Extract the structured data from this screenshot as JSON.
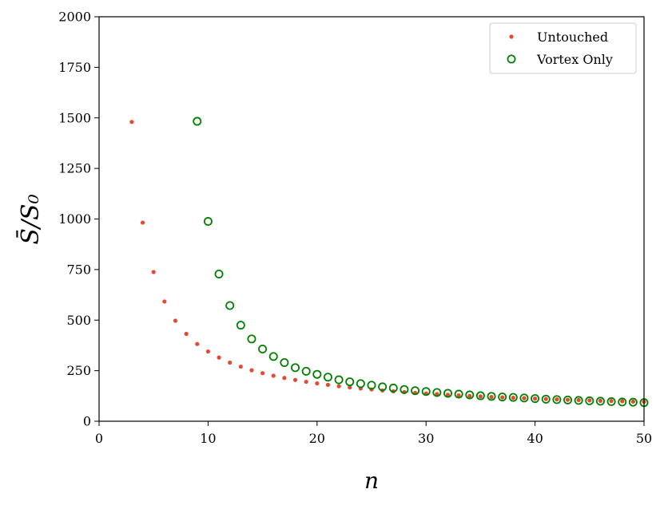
{
  "chart_data": {
    "type": "scatter",
    "xlabel": "n",
    "ylabel": "S̄/S₀",
    "xlim": [
      0,
      50
    ],
    "ylim": [
      0,
      2000
    ],
    "x_ticks": [
      "0",
      "10",
      "20",
      "30",
      "40",
      "50"
    ],
    "y_ticks": [
      "0",
      "250",
      "500",
      "750",
      "1000",
      "1250",
      "1500",
      "1750",
      "2000"
    ],
    "grid": false,
    "legend_position": "top-right",
    "series": [
      {
        "name": "Untouched",
        "marker": "filled-dot",
        "color": "#e24a33",
        "x": [
          3,
          4,
          5,
          6,
          7,
          8,
          9,
          10,
          11,
          12,
          13,
          14,
          15,
          16,
          17,
          18,
          19,
          20,
          21,
          22,
          23,
          24,
          25,
          26,
          27,
          28,
          29,
          30,
          31,
          32,
          33,
          34,
          35,
          36,
          37,
          38,
          39,
          40,
          41,
          42,
          43,
          44,
          45,
          46,
          47,
          48,
          49,
          50
        ],
        "y": [
          1480,
          982,
          738,
          592,
          497,
          432,
          382,
          345,
          315,
          290,
          270,
          252,
          238,
          225,
          214,
          204,
          195,
          187,
          180,
          173,
          167,
          162,
          157,
          152,
          148,
          144,
          140,
          137,
          134,
          131,
          128,
          125,
          123,
          120,
          118,
          116,
          114,
          112,
          110,
          108,
          106,
          105,
          103,
          101,
          100,
          99,
          97,
          96
        ]
      },
      {
        "name": "Vortex Only",
        "marker": "open-circle",
        "color": "#008000",
        "x": [
          9,
          10,
          11,
          12,
          13,
          14,
          15,
          16,
          17,
          18,
          19,
          20,
          21,
          22,
          23,
          24,
          25,
          26,
          27,
          28,
          29,
          30,
          31,
          32,
          33,
          34,
          35,
          36,
          37,
          38,
          39,
          40,
          41,
          42,
          43,
          44,
          45,
          46,
          47,
          48,
          49,
          50
        ],
        "y": [
          1483,
          988,
          728,
          572,
          475,
          407,
          357,
          320,
          290,
          265,
          247,
          232,
          218,
          205,
          195,
          186,
          178,
          170,
          164,
          157,
          151,
          147,
          142,
          138,
          134,
          130,
          126,
          123,
          120,
          118,
          115,
          112,
          109,
          107,
          105,
          103,
          101,
          99,
          97,
          95,
          94,
          92
        ]
      }
    ]
  }
}
